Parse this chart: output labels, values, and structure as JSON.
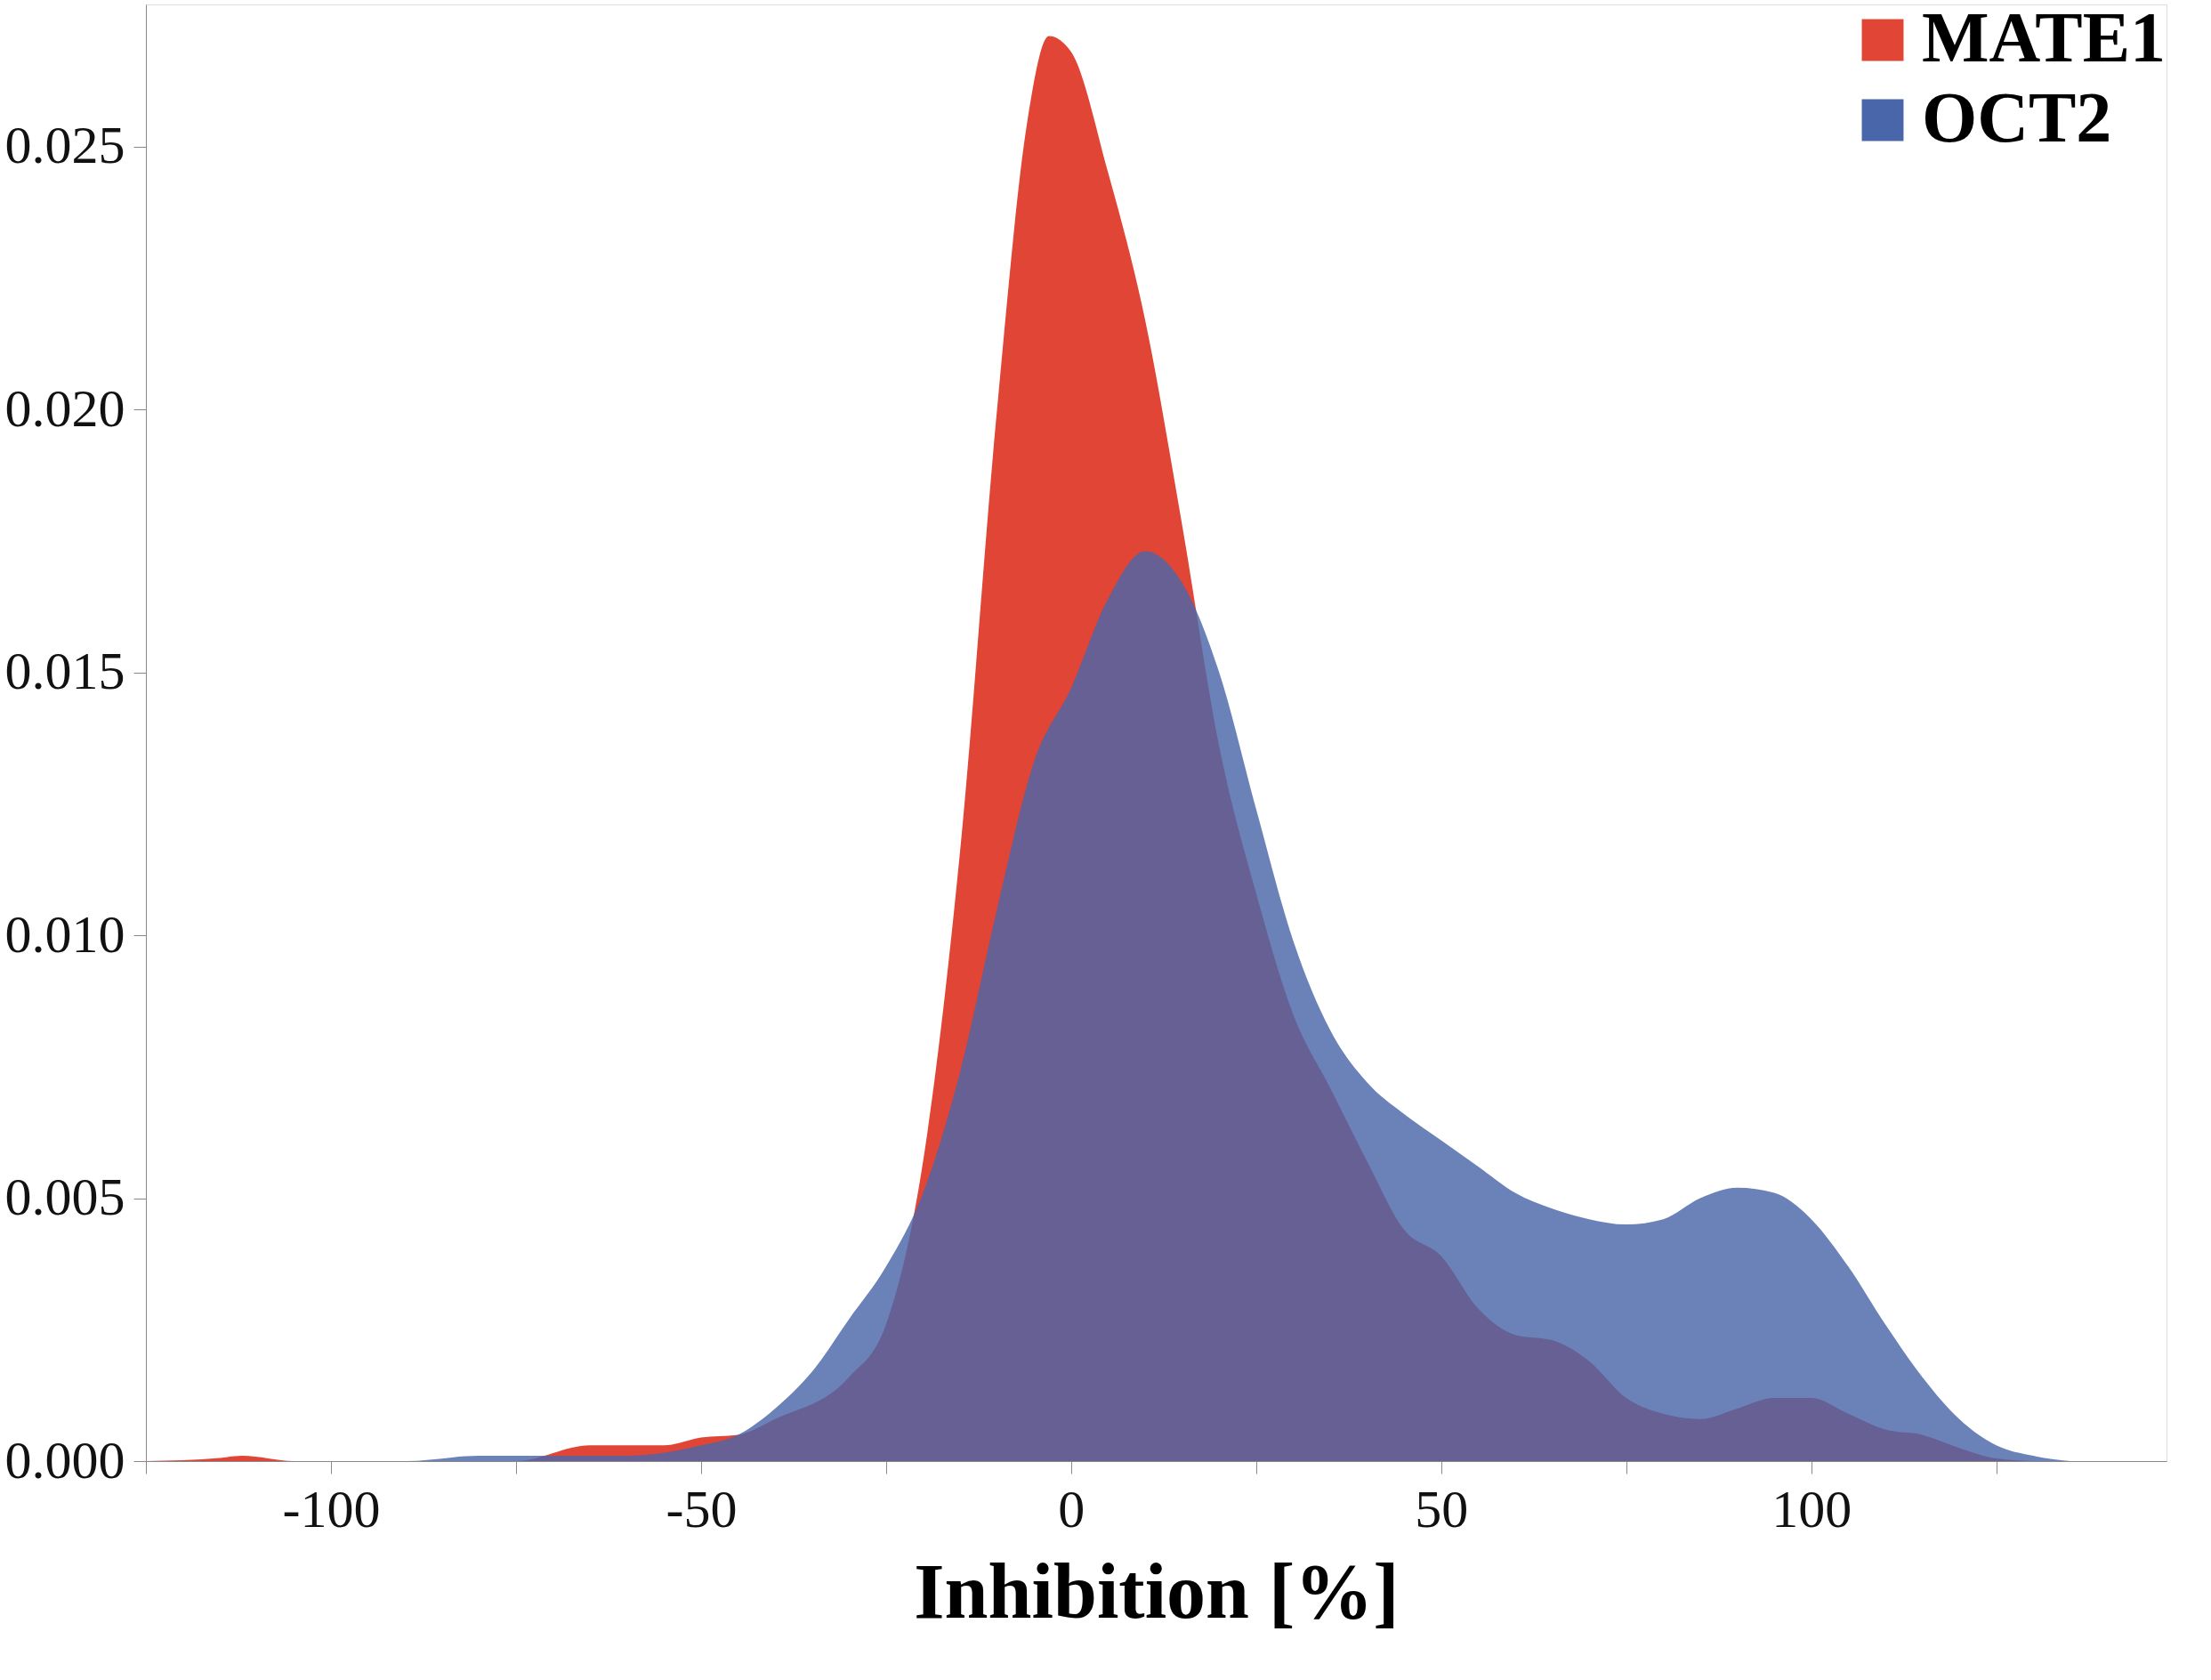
{
  "chart_data": {
    "type": "area",
    "xlabel": "Inhibition [%]",
    "xlim": [
      -125,
      148
    ],
    "ylim": [
      0,
      0.0277
    ],
    "xticks": [
      {
        "value": -125,
        "label": null
      },
      -100,
      {
        "value": -75,
        "label": null
      },
      -50,
      {
        "value": -25,
        "label": null
      },
      0,
      {
        "value": 25,
        "label": null
      },
      50,
      {
        "value": 75,
        "label": null
      },
      100,
      {
        "value": 125,
        "label": null
      }
    ],
    "yticks": [
      {
        "value": 0,
        "label": "0.000"
      },
      {
        "value": 0.005,
        "label": "0.005"
      },
      {
        "value": 0.01,
        "label": "0.010"
      },
      {
        "value": 0.015,
        "label": "0.015"
      },
      {
        "value": 0.02,
        "label": "0.020"
      },
      {
        "value": 0.025,
        "label": "0.025"
      }
    ],
    "grid": false,
    "legend": "top right",
    "series": [
      {
        "name": "MATE1",
        "color": "#e04535",
        "x": [
          -125,
          -115,
          -112,
          -105,
          -75,
          -65,
          -55,
          -50,
          -45,
          -40,
          -30,
          -25,
          -20,
          -15,
          -10,
          -6,
          -3,
          0,
          5,
          10,
          15,
          20,
          25,
          30,
          35,
          40,
          45,
          50,
          55,
          60,
          65,
          70,
          75,
          80,
          85,
          90,
          95,
          100,
          105,
          110,
          115,
          120,
          125,
          130
        ],
        "values": [
          0,
          6e-05,
          0.0001,
          0,
          0,
          0.0003,
          0.0003,
          0.00045,
          0.0005,
          0.0008,
          0.0016,
          0.0026,
          0.0057,
          0.0116,
          0.02,
          0.0254,
          0.0271,
          0.0268,
          0.0245,
          0.0217,
          0.0178,
          0.0136,
          0.0108,
          0.0085,
          0.0071,
          0.0057,
          0.0044,
          0.0039,
          0.0029,
          0.0024,
          0.0023,
          0.0019,
          0.0012,
          0.0009,
          0.0008,
          0.001,
          0.0012,
          0.0012,
          0.0009,
          0.0006,
          0.0005,
          0.00025,
          5e-05,
          0
        ]
      },
      {
        "name": "OCT2",
        "color": "#4a66aa",
        "x": [
          -125,
          -90,
          -80,
          -60,
          -50,
          -45,
          -40,
          -35,
          -30,
          -25,
          -20,
          -15,
          -10,
          -5,
          0,
          5,
          10,
          15,
          20,
          25,
          30,
          35,
          40,
          45,
          50,
          55,
          60,
          65,
          70,
          75,
          80,
          85,
          90,
          95,
          100,
          105,
          110,
          115,
          120,
          125,
          130,
          135
        ],
        "values": [
          0,
          0,
          0.0001,
          0.0001,
          0.0003,
          0.0005,
          0.001,
          0.0017,
          0.0027,
          0.0037,
          0.0051,
          0.0074,
          0.0105,
          0.0133,
          0.0147,
          0.0164,
          0.0173,
          0.0167,
          0.015,
          0.0124,
          0.0099,
          0.0082,
          0.0072,
          0.0066,
          0.0061,
          0.0056,
          0.0051,
          0.0048,
          0.0046,
          0.0045,
          0.0046,
          0.005,
          0.0052,
          0.0051,
          0.0046,
          0.0037,
          0.0026,
          0.0016,
          0.0008,
          0.0003,
          0.0001,
          0
        ]
      }
    ]
  }
}
